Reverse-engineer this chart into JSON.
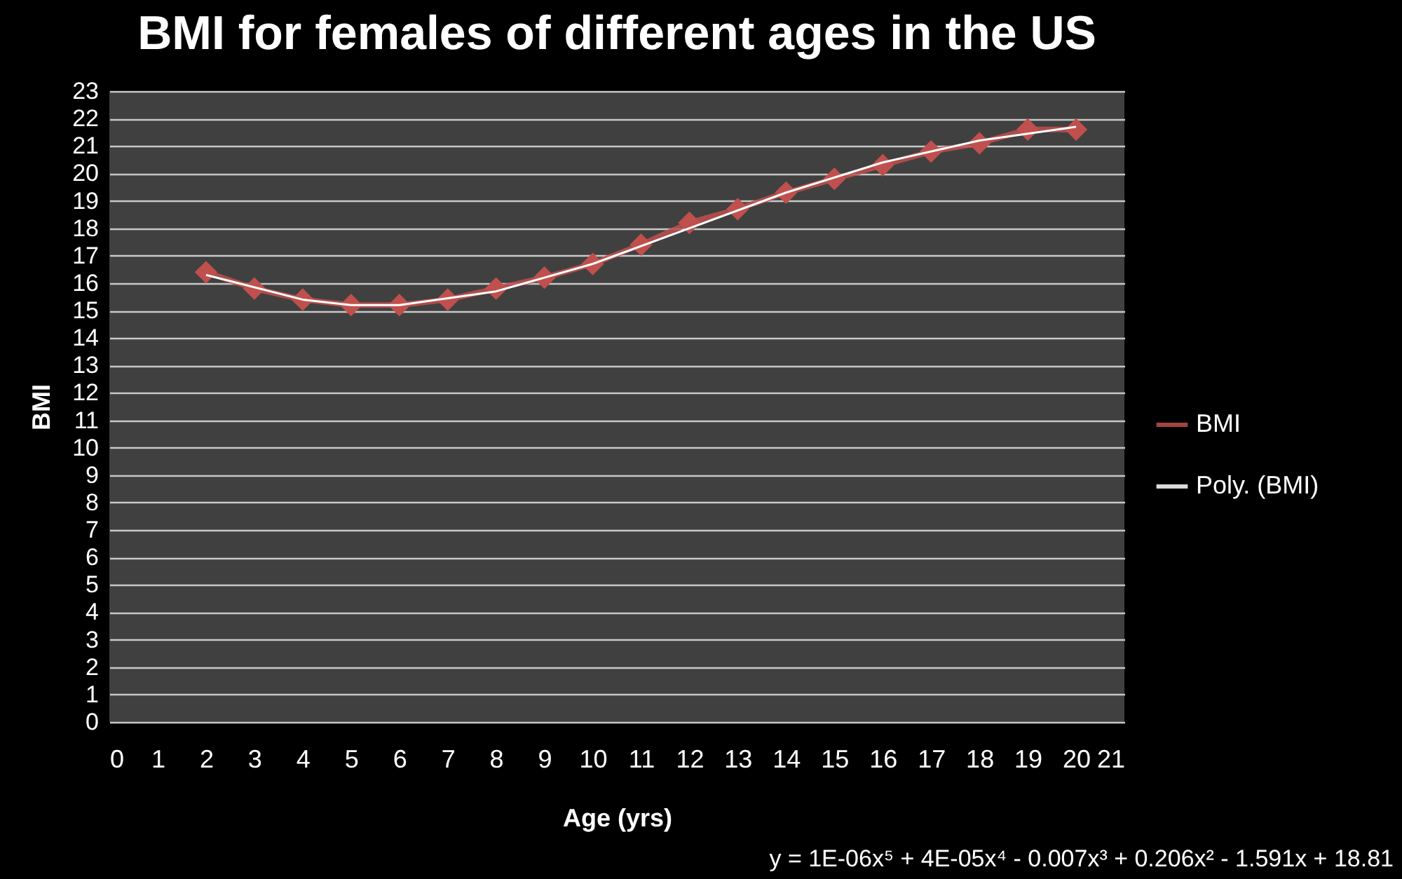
{
  "chart_data": {
    "type": "line",
    "title": "BMI for females of different ages in the US",
    "xlabel": "Age (yrs)",
    "ylabel": "BMI",
    "x": [
      2,
      3,
      4,
      5,
      6,
      7,
      8,
      9,
      10,
      11,
      12,
      13,
      14,
      15,
      16,
      17,
      18,
      19,
      20
    ],
    "series": [
      {
        "name": "BMI",
        "color": "#c0504d",
        "marker": "diamond",
        "values": [
          16.4,
          15.8,
          15.4,
          15.2,
          15.2,
          15.4,
          15.8,
          16.2,
          16.7,
          17.4,
          18.2,
          18.7,
          19.3,
          19.8,
          20.3,
          20.8,
          21.1,
          21.6,
          21.6
        ]
      },
      {
        "name": "Poly. (BMI)",
        "type": "line",
        "color": "#ffffff",
        "marker": "none",
        "x": [
          2,
          4,
          5,
          6,
          8,
          10,
          12,
          14,
          16,
          18,
          20
        ],
        "values": [
          16.3,
          15.4,
          15.2,
          15.2,
          15.7,
          16.7,
          18.0,
          19.3,
          20.4,
          21.2,
          21.7
        ]
      }
    ],
    "xlim": [
      0,
      21
    ],
    "xticks": [
      0,
      1,
      2,
      3,
      4,
      5,
      6,
      7,
      8,
      9,
      10,
      11,
      12,
      13,
      14,
      15,
      16,
      17,
      18,
      19,
      20,
      21
    ],
    "ylim": [
      0,
      23
    ],
    "yticks": [
      0,
      1,
      2,
      3,
      4,
      5,
      6,
      7,
      8,
      9,
      10,
      11,
      12,
      13,
      14,
      15,
      16,
      17,
      18,
      19,
      20,
      21,
      22,
      23
    ],
    "grid": "y",
    "legend": "right",
    "line_style": "solid",
    "annotations": [
      "y = 1E-06x⁵ + 4E-05x⁴ - 0.007x³ + 0.206x² - 1.591x + 18.81"
    ]
  }
}
